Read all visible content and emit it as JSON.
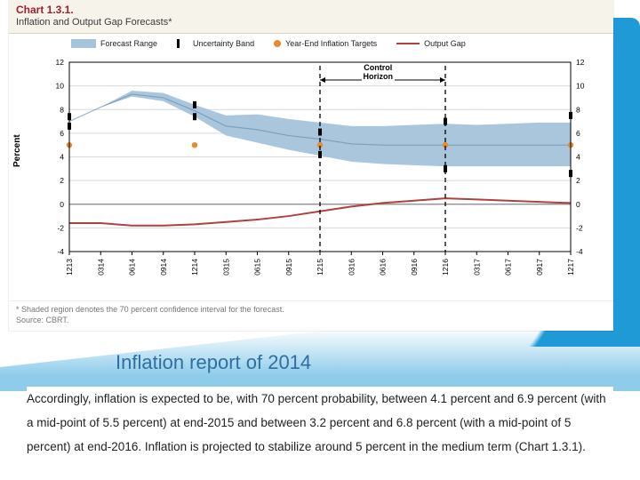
{
  "chart": {
    "number": "Chart 1.3.1.",
    "title": "Inflation and Output Gap Forecasts*",
    "legend": {
      "range": "Forecast Range",
      "band": "Uncertainty Band",
      "targets": "Year-End Inflation Targets",
      "gap": "Output Gap"
    },
    "ylabel": "Percent",
    "control_horizon": "Control\nHorizon",
    "ylim": [
      -4,
      12
    ],
    "yticks": [
      -4,
      -2,
      0,
      2,
      4,
      6,
      8,
      10,
      12
    ],
    "xticks": [
      "1213",
      "0314",
      "0614",
      "0914",
      "1214",
      "0315",
      "0615",
      "0915",
      "1215",
      "0316",
      "0616",
      "0916",
      "1216",
      "0317",
      "0617",
      "0917",
      "1217"
    ],
    "range_upper": [
      7.0,
      8.2,
      9.6,
      9.4,
      8.4,
      7.5,
      7.6,
      7.2,
      6.9,
      6.6,
      6.6,
      6.7,
      6.8,
      6.7,
      6.8,
      6.9,
      6.9
    ],
    "range_lower": [
      7.0,
      8.2,
      9.1,
      8.7,
      7.4,
      5.8,
      5.2,
      4.6,
      4.1,
      3.6,
      3.4,
      3.3,
      3.2,
      3.2,
      3.2,
      3.2,
      3.2
    ],
    "mid_line": [
      7.0,
      8.2,
      9.3,
      9.0,
      7.9,
      6.6,
      6.3,
      5.8,
      5.5,
      5.1,
      5.0,
      5.0,
      5.0,
      5.0,
      5.0,
      5.0,
      5.0
    ],
    "output_gap": [
      -1.6,
      -1.6,
      -1.8,
      -1.8,
      -1.7,
      -1.5,
      -1.3,
      -1.0,
      -0.6,
      -0.2,
      0.1,
      0.3,
      0.5,
      0.4,
      0.3,
      0.2,
      0.1
    ],
    "uncertainty_ticks_x": [
      0,
      4,
      8,
      12,
      16
    ],
    "uncertainty_upper": [
      7.4,
      8.4,
      6.1,
      7.0,
      7.5
    ],
    "uncertainty_lower": [
      6.6,
      7.4,
      4.2,
      3.0,
      2.6
    ],
    "target_dots_x": [
      0,
      4,
      8,
      12,
      16
    ],
    "target_dots_y": [
      5.0,
      5.0,
      5.0,
      5.0,
      5.0
    ],
    "control_x": [
      8,
      12
    ],
    "colors": {
      "range_fill": "#a5c3db",
      "mid_line": "#5f87a8",
      "gap_line": "#b0413e",
      "target_dot": "#e88b2d",
      "grid": "#d9d9d9",
      "axis": "#000000",
      "tick": "#000000"
    },
    "footnote1": "* Shaded region denotes the 70 percent confidence interval for the forecast.",
    "footnote2": "Source: CBRT."
  },
  "caption": "Inflation report of 2014",
  "body_text": "Accordingly, inflation is expected to be, with 70 percent probability, between 4.1 percent and 6.9 percent (with a mid-point of 5.5 percent) at end-2015 and between 3.2 percent and 6.8 percent (with a mid-point of 5 percent) at end-2016. Inflation is projected to stabilize around 5 percent in the medium term (Chart 1.3.1)."
}
